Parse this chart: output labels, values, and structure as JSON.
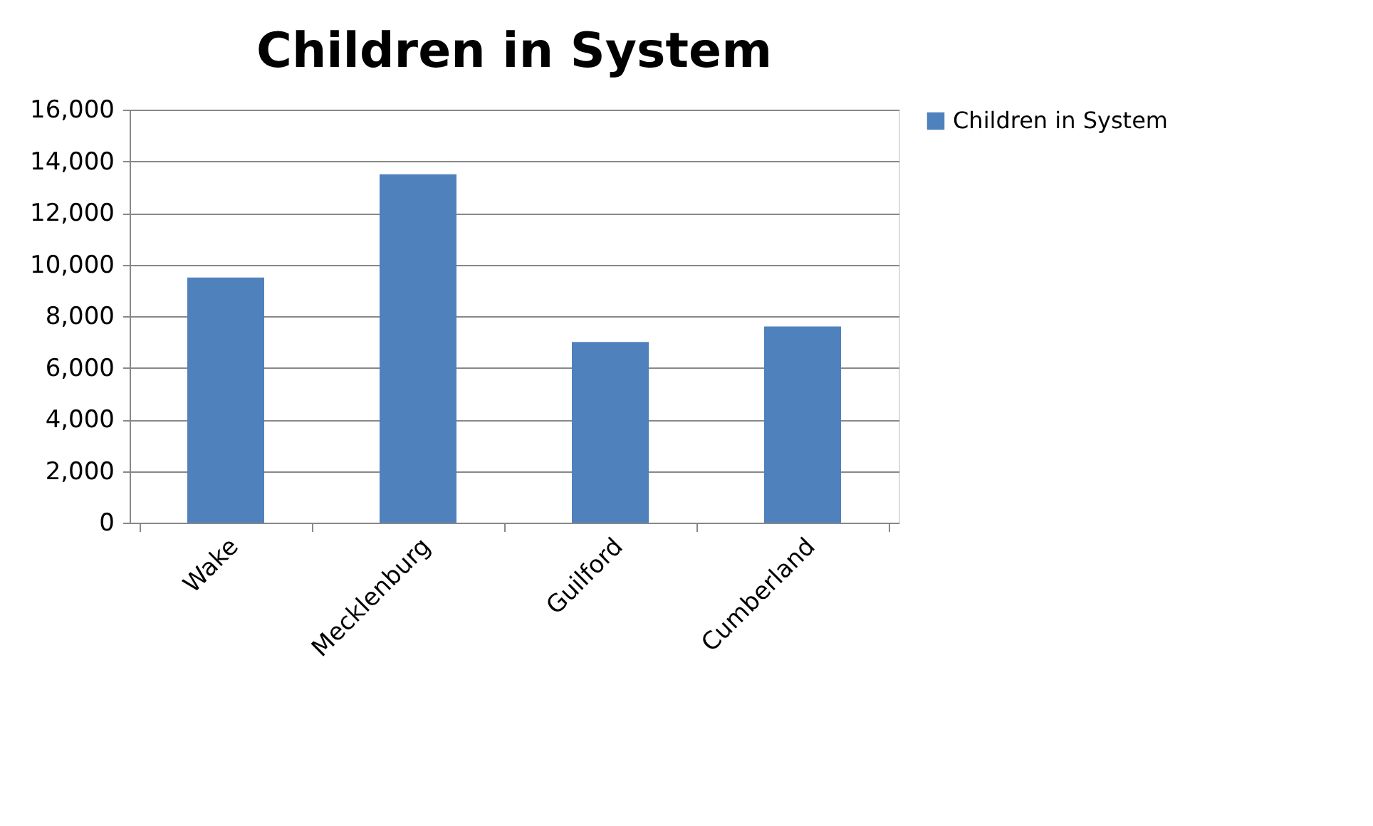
{
  "chart_data": {
    "type": "bar",
    "title": "Children in System",
    "categories": [
      "Wake",
      "Mecklenburg",
      "Guilford",
      "Cumberland"
    ],
    "series": [
      {
        "name": "Children in System",
        "color": "#4f81bd",
        "values": [
          9500,
          13500,
          7000,
          7600
        ]
      }
    ],
    "ylim": [
      0,
      16000
    ],
    "yticks": [
      {
        "value": 0,
        "label": "0"
      },
      {
        "value": 2000,
        "label": "2,000"
      },
      {
        "value": 4000,
        "label": "4,000"
      },
      {
        "value": 6000,
        "label": "6,000"
      },
      {
        "value": 8000,
        "label": "8,000"
      },
      {
        "value": 10000,
        "label": "10,000"
      },
      {
        "value": 12000,
        "label": "12,000"
      },
      {
        "value": 14000,
        "label": "14,000"
      },
      {
        "value": 16000,
        "label": "16,000"
      }
    ],
    "grid": "y",
    "legend": "right"
  }
}
